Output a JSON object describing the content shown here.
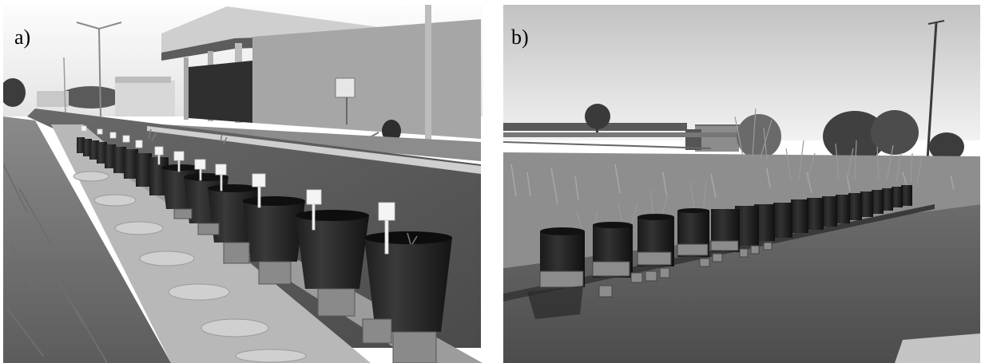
{
  "figure": {
    "panels": [
      {
        "label": "a)",
        "scene": "grayscale-photo-potted-plants-along-street-curb"
      },
      {
        "label": "b)",
        "scene": "grayscale-photo-potted-plants-in-open-field"
      }
    ]
  }
}
